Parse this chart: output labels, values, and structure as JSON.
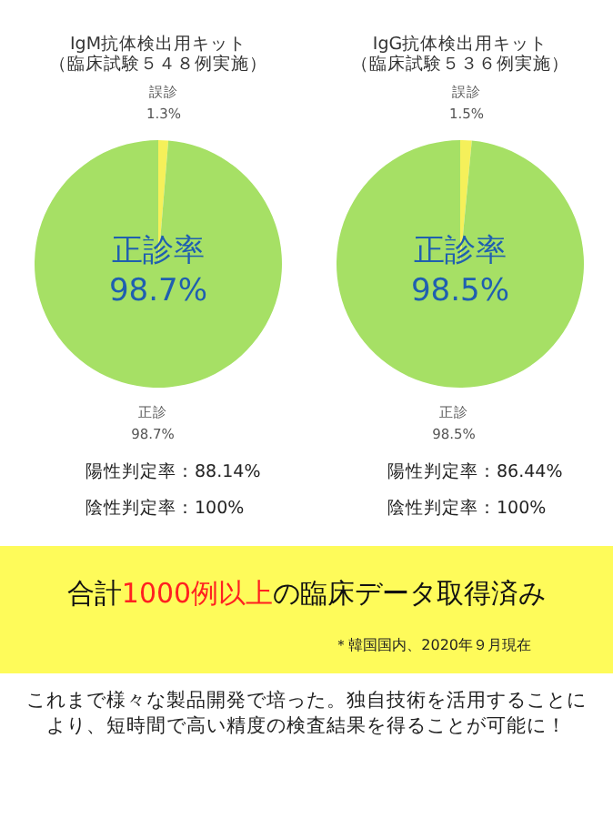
{
  "chart_data": [
    {
      "type": "pie",
      "title": "IgM抗体検出用キット",
      "subtitle": "（臨床試験５４８例実施）",
      "categories": [
        "誤診",
        "正診"
      ],
      "values": [
        1.3,
        98.7
      ],
      "colors": [
        "#f5f05a",
        "#a6e065"
      ],
      "value_labels": [
        "1.3%",
        "98.7%"
      ],
      "annotations": [
        "正診率",
        "98.7%",
        "陽性判定率：88.14%",
        "陰性判定率：100%"
      ]
    },
    {
      "type": "pie",
      "title": "IgG抗体検出用キット",
      "subtitle": "（臨床試験５３６例実施）",
      "categories": [
        "誤診",
        "正診"
      ],
      "values": [
        1.5,
        98.5
      ],
      "colors": [
        "#f5f05a",
        "#a6e065"
      ],
      "value_labels": [
        "1.5%",
        "98.5%"
      ],
      "annotations": [
        "正診率",
        "98.5%",
        "陽性判定率：86.44%",
        "陰性判定率：100%"
      ]
    },
    {
      "type": "other",
      "color": "#fefb5a",
      "annotations": [
        "合計",
        "1000例以上",
        "の臨床データ取得済み",
        "＊韓国国内、2020年９月現在",
        "これまで様々な製品開発で培った。独自技術を活用することにより、短時間で高い精度の検査結果を得ることが可能に！"
      ]
    }
  ]
}
